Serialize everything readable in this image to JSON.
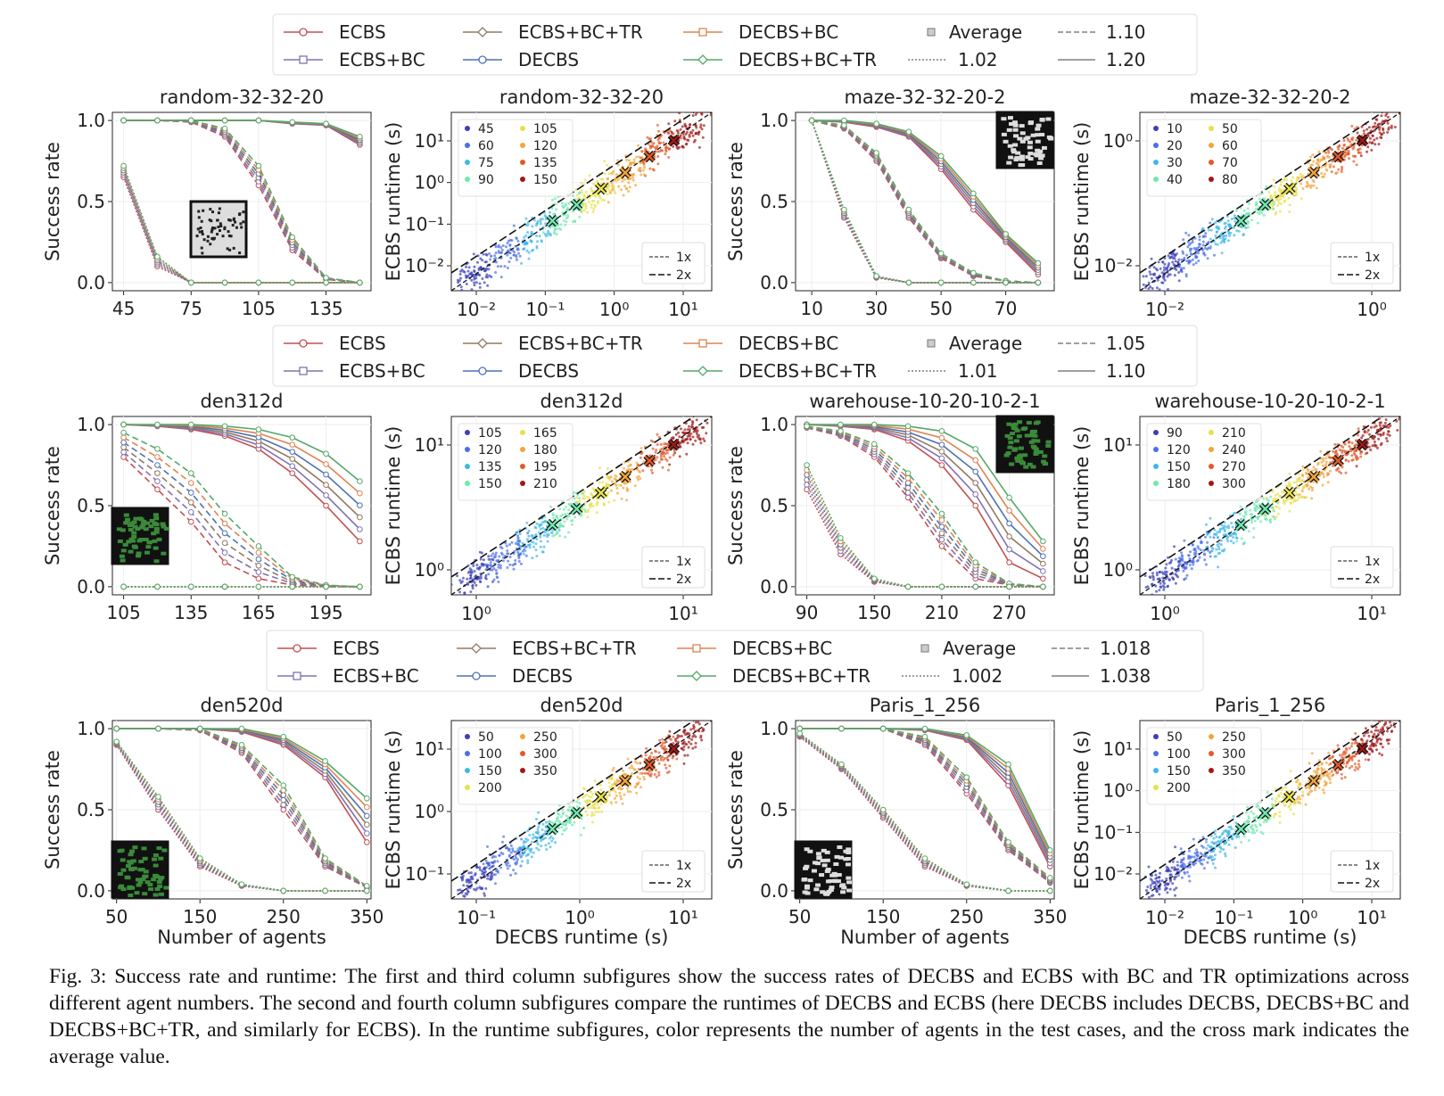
{
  "legends": [
    {
      "items": [
        "ECBS",
        "ECBS+BC",
        "ECBS+BC+TR",
        "DECBS",
        "DECBS+BC",
        "DECBS+BC+TR"
      ],
      "average_label": "Average",
      "dash_labels": [
        "1.10",
        "1.02",
        "1.20"
      ]
    },
    {
      "items": [
        "ECBS",
        "ECBS+BC",
        "ECBS+BC+TR",
        "DECBS",
        "DECBS+BC",
        "DECBS+BC+TR"
      ],
      "average_label": "Average",
      "dash_labels": [
        "1.05",
        "1.01",
        "1.10"
      ]
    },
    {
      "items": [
        "ECBS",
        "ECBS+BC",
        "ECBS+BC+TR",
        "DECBS",
        "DECBS+BC",
        "DECBS+BC+TR"
      ],
      "average_label": "Average",
      "dash_labels": [
        "1.018",
        "1.002",
        "1.038"
      ]
    }
  ],
  "colors": {
    "ECBS": "#c44e52",
    "ECBS+BC": "#8172b2",
    "ECBS+BC+TR": "#937860",
    "DECBS": "#4c72b0",
    "DECBS+BC": "#dd8452",
    "DECBS+BC+TR": "#55a868"
  },
  "chart_data": [
    {
      "type": "line",
      "title": "random-32-32-20",
      "xlabel": "",
      "ylabel": "Success rate",
      "xticks": [
        "45",
        "75",
        "105",
        "135"
      ],
      "yticks": [
        "0.0",
        "0.5",
        "1.0"
      ],
      "x": [
        45,
        60,
        75,
        90,
        105,
        120,
        135,
        150
      ],
      "xlim": [
        40,
        155
      ],
      "ylim": [
        -0.05,
        1.05
      ],
      "groups": {
        "solid": [
          [
            1,
            1,
            1,
            1,
            1,
            0.98,
            0.97,
            0.85
          ],
          [
            1,
            1,
            1,
            1,
            1,
            0.99,
            0.98,
            0.9
          ]
        ],
        "dashed": [
          [
            1,
            1,
            0.99,
            0.9,
            0.6,
            0.2,
            0.02,
            0
          ],
          [
            1,
            1,
            1,
            0.95,
            0.72,
            0.28,
            0.03,
            0
          ]
        ],
        "dotted": [
          [
            0.65,
            0.1,
            0,
            0,
            0,
            0,
            0,
            0
          ],
          [
            0.72,
            0.16,
            0,
            0,
            0,
            0,
            0,
            0
          ]
        ]
      }
    },
    {
      "type": "scatter",
      "title": "random-32-32-20",
      "xlabel": "",
      "ylabel": "ECBS runtime (s)",
      "xticks": [
        "10⁻²",
        "10⁻¹",
        "10⁰",
        "10¹"
      ],
      "yticks": [
        "10⁻²",
        "10⁻¹",
        "10⁰",
        "10¹"
      ],
      "legend": [
        "45",
        "60",
        "75",
        "90",
        "105",
        "120",
        "135",
        "150"
      ],
      "ref_lines": [
        "1x",
        "2x"
      ]
    },
    {
      "type": "line",
      "title": "maze-32-32-20-2",
      "xlabel": "",
      "ylabel": "Success rate",
      "xticks": [
        "10",
        "30",
        "50",
        "70"
      ],
      "yticks": [
        "0.0",
        "0.5",
        "1.0"
      ],
      "x": [
        10,
        20,
        30,
        40,
        50,
        60,
        70,
        80
      ],
      "xlim": [
        5,
        85
      ],
      "ylim": [
        -0.05,
        1.05
      ],
      "groups": {
        "solid": [
          [
            1,
            0.99,
            0.96,
            0.9,
            0.7,
            0.45,
            0.25,
            0.05
          ],
          [
            1,
            1,
            0.98,
            0.93,
            0.78,
            0.55,
            0.3,
            0.12
          ]
        ],
        "dashed": [
          [
            1,
            0.95,
            0.75,
            0.4,
            0.15,
            0.04,
            0.01,
            0
          ],
          [
            1,
            0.97,
            0.8,
            0.45,
            0.18,
            0.06,
            0.01,
            0
          ]
        ],
        "dotted": [
          [
            1,
            0.4,
            0.03,
            0,
            0,
            0,
            0,
            0
          ],
          [
            1,
            0.45,
            0.04,
            0,
            0,
            0,
            0,
            0
          ]
        ]
      }
    },
    {
      "type": "scatter",
      "title": "maze-32-32-20-2",
      "xlabel": "",
      "ylabel": "ECBS runtime (s)",
      "xticks": [
        "10⁻²",
        "10⁰"
      ],
      "yticks": [
        "10⁻²",
        "10⁰"
      ],
      "legend": [
        "10",
        "20",
        "30",
        "40",
        "50",
        "60",
        "70",
        "80"
      ],
      "ref_lines": [
        "1x",
        "2x"
      ]
    },
    {
      "type": "line",
      "title": "den312d",
      "xlabel": "",
      "ylabel": "Success rate",
      "xticks": [
        "105",
        "135",
        "165",
        "195"
      ],
      "yticks": [
        "0.0",
        "0.5",
        "1.0"
      ],
      "x": [
        105,
        120,
        135,
        150,
        165,
        180,
        195,
        210
      ],
      "xlim": [
        100,
        215
      ],
      "ylim": [
        -0.05,
        1.05
      ],
      "groups": {
        "solid": [
          [
            1,
            0.99,
            0.97,
            0.93,
            0.85,
            0.7,
            0.5,
            0.28
          ],
          [
            1,
            1,
            1,
            0.99,
            0.97,
            0.92,
            0.82,
            0.65
          ]
        ],
        "dashed": [
          [
            0.8,
            0.6,
            0.4,
            0.15,
            0.05,
            0.01,
            0,
            0
          ],
          [
            0.95,
            0.85,
            0.7,
            0.45,
            0.25,
            0.06,
            0.01,
            0
          ]
        ],
        "dotted": [
          [
            0,
            0,
            0,
            0,
            0,
            0,
            0,
            0
          ],
          [
            0,
            0,
            0,
            0,
            0,
            0,
            0,
            0
          ]
        ]
      }
    },
    {
      "type": "scatter",
      "title": "den312d",
      "xlabel": "",
      "ylabel": "ECBS runtime (s)",
      "xticks": [
        "10⁰",
        "10¹"
      ],
      "yticks": [
        "10⁰",
        "10¹"
      ],
      "legend": [
        "105",
        "120",
        "135",
        "150",
        "165",
        "180",
        "195",
        "210"
      ],
      "ref_lines": [
        "1x",
        "2x"
      ]
    },
    {
      "type": "line",
      "title": "warehouse-10-20-10-2-1",
      "xlabel": "",
      "ylabel": "Success rate",
      "xticks": [
        "90",
        "150",
        "210",
        "270"
      ],
      "yticks": [
        "0.0",
        "0.5",
        "1.0"
      ],
      "x": [
        90,
        120,
        150,
        180,
        210,
        240,
        270,
        300
      ],
      "xlim": [
        80,
        310
      ],
      "ylim": [
        -0.05,
        1.05
      ],
      "groups": {
        "solid": [
          [
            1,
            0.99,
            0.97,
            0.9,
            0.75,
            0.5,
            0.15,
            0.05
          ],
          [
            1,
            1,
            1,
            0.99,
            0.96,
            0.85,
            0.55,
            0.28
          ]
        ],
        "dashed": [
          [
            0.98,
            0.93,
            0.8,
            0.55,
            0.25,
            0.05,
            0.01,
            0
          ],
          [
            0.99,
            0.96,
            0.88,
            0.7,
            0.45,
            0.15,
            0.02,
            0
          ]
        ],
        "dotted": [
          [
            0.6,
            0.2,
            0.03,
            0,
            0,
            0,
            0,
            0
          ],
          [
            0.75,
            0.3,
            0.05,
            0,
            0,
            0,
            0,
            0
          ]
        ]
      }
    },
    {
      "type": "scatter",
      "title": "warehouse-10-20-10-2-1",
      "xlabel": "",
      "ylabel": "ECBS runtime (s)",
      "xticks": [
        "10⁰",
        "10¹"
      ],
      "yticks": [
        "10⁰",
        "10¹"
      ],
      "legend": [
        "90",
        "120",
        "150",
        "180",
        "210",
        "240",
        "270",
        "300"
      ],
      "ref_lines": [
        "1x",
        "2x"
      ]
    },
    {
      "type": "line",
      "title": "den520d",
      "xlabel": "Number of agents",
      "ylabel": "Success rate",
      "xticks": [
        "50",
        "150",
        "250",
        "350"
      ],
      "yticks": [
        "0.0",
        "0.5",
        "1.0"
      ],
      "x": [
        50,
        100,
        150,
        200,
        250,
        300,
        350
      ],
      "xlim": [
        45,
        355
      ],
      "ylim": [
        -0.05,
        1.05
      ],
      "groups": {
        "solid": [
          [
            1,
            1,
            1,
            0.98,
            0.9,
            0.7,
            0.3
          ],
          [
            1,
            1,
            1,
            1,
            0.95,
            0.8,
            0.57
          ]
        ],
        "dashed": [
          [
            1,
            1,
            0.99,
            0.85,
            0.5,
            0.15,
            0.02
          ],
          [
            1,
            1,
            1,
            0.9,
            0.65,
            0.2,
            0.03
          ]
        ],
        "dotted": [
          [
            0.9,
            0.5,
            0.15,
            0.03,
            0,
            0,
            0
          ],
          [
            0.92,
            0.58,
            0.2,
            0.04,
            0,
            0,
            0
          ]
        ]
      }
    },
    {
      "type": "scatter",
      "title": "den520d",
      "xlabel": "DECBS runtime (s)",
      "ylabel": "ECBS runtime (s)",
      "xticks": [
        "10⁻¹",
        "10⁰",
        "10¹"
      ],
      "yticks": [
        "10⁻¹",
        "10⁰",
        "10¹"
      ],
      "legend": [
        "50",
        "100",
        "150",
        "200",
        "250",
        "300",
        "350"
      ],
      "ref_lines": [
        "1x",
        "2x"
      ]
    },
    {
      "type": "line",
      "title": "Paris_1_256",
      "xlabel": "Number of agents",
      "ylabel": "Success rate",
      "xticks": [
        "50",
        "150",
        "250",
        "350"
      ],
      "yticks": [
        "0.0",
        "0.5",
        "1.0"
      ],
      "x": [
        50,
        100,
        150,
        200,
        250,
        300,
        350
      ],
      "xlim": [
        45,
        355
      ],
      "ylim": [
        -0.05,
        1.05
      ],
      "groups": {
        "solid": [
          [
            1,
            1,
            1,
            0.99,
            0.93,
            0.65,
            0.15
          ],
          [
            1,
            1,
            1,
            1,
            0.96,
            0.78,
            0.25
          ]
        ],
        "dashed": [
          [
            1,
            1,
            1,
            0.9,
            0.6,
            0.25,
            0.05
          ],
          [
            1,
            1,
            1,
            0.95,
            0.7,
            0.3,
            0.08
          ]
        ],
        "dotted": [
          [
            0.95,
            0.75,
            0.45,
            0.15,
            0.03,
            0,
            0
          ],
          [
            0.97,
            0.78,
            0.5,
            0.2,
            0.04,
            0,
            0
          ]
        ]
      }
    },
    {
      "type": "scatter",
      "title": "Paris_1_256",
      "xlabel": "DECBS runtime (s)",
      "ylabel": "ECBS runtime (s)",
      "xticks": [
        "10⁻²",
        "10⁻¹",
        "10⁰",
        "10¹"
      ],
      "yticks": [
        "10⁻²",
        "10⁻¹",
        "10⁰",
        "10¹"
      ],
      "legend": [
        "50",
        "100",
        "150",
        "200",
        "250",
        "300",
        "350"
      ],
      "ref_lines": [
        "1x",
        "2x"
      ]
    }
  ],
  "caption": "Fig. 3: Success rate and runtime: The first and third column subfigures show the success rates of DECBS and ECBS with BC and TR optimizations across different agent numbers. The second and fourth column subfigures compare the runtimes of DECBS and ECBS (here DECBS includes DECBS, DECBS+BC and DECBS+BC+TR, and similarly for ECBS). In the runtime subfigures, color represents the number of agents in the test cases, and the cross mark indicates the average value."
}
